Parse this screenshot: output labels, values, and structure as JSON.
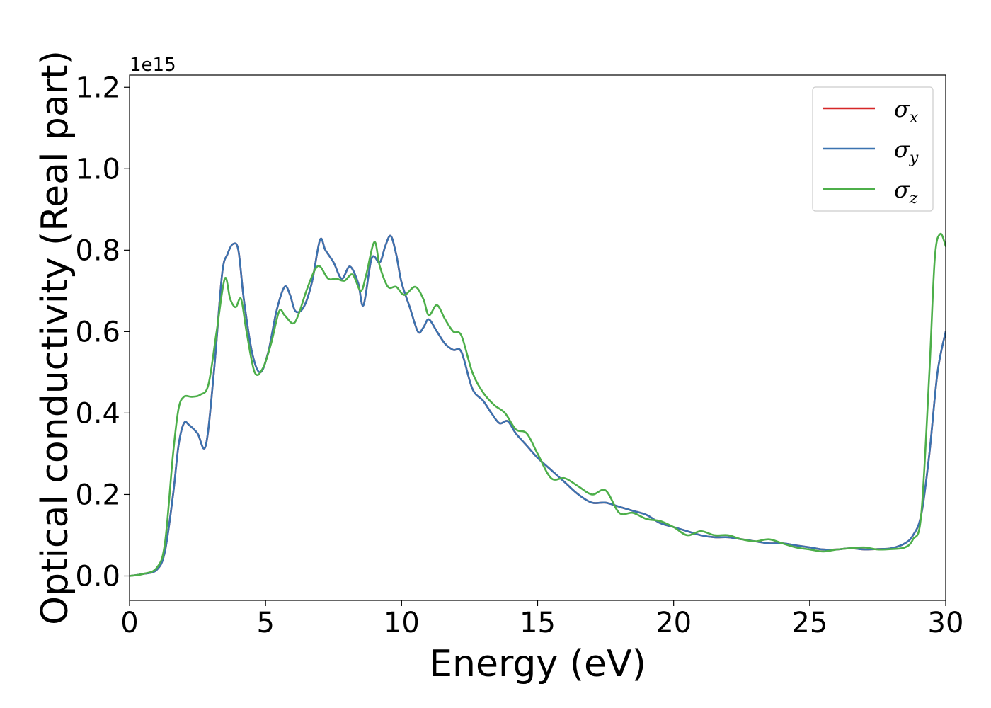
{
  "chart_data": {
    "type": "line",
    "xlabel": "Energy (eV)",
    "ylabel": "Optical conductivity (Real part)",
    "y_offset_label": "1e15",
    "xlim": [
      0,
      30
    ],
    "ylim": [
      -0.06,
      1.23
    ],
    "x_ticks": [
      0,
      5,
      10,
      15,
      20,
      25,
      30
    ],
    "x_tick_labels": [
      "0",
      "5",
      "10",
      "15",
      "20",
      "25",
      "30"
    ],
    "y_ticks": [
      0.0,
      0.2,
      0.4,
      0.6,
      0.8,
      1.0,
      1.2
    ],
    "y_tick_labels": [
      "0.0",
      "0.2",
      "0.4",
      "0.6",
      "0.8",
      "1.0",
      "1.2"
    ],
    "grid": false,
    "legend_position": "top-right",
    "series": [
      {
        "name": "σ",
        "subscript": "x",
        "color": "#d62728",
        "x": [
          0,
          0.5,
          1,
          1.3,
          1.6,
          1.8,
          2,
          2.2,
          2.5,
          2.8,
          3.1,
          3.4,
          3.6,
          3.8,
          4,
          4.2,
          4.5,
          4.8,
          5.1,
          5.4,
          5.7,
          5.9,
          6.1,
          6.4,
          6.7,
          7,
          7.2,
          7.5,
          7.8,
          8.1,
          8.4,
          8.6,
          8.9,
          9.2,
          9.4,
          9.6,
          9.8,
          10,
          10.3,
          10.6,
          10.8,
          11,
          11.3,
          11.6,
          11.9,
          12.2,
          12.6,
          13,
          13.3,
          13.6,
          13.9,
          14.2,
          14.6,
          15,
          15.5,
          16,
          16.5,
          17,
          17.5,
          18,
          18.5,
          19,
          19.5,
          20,
          20.5,
          21,
          21.5,
          22,
          22.5,
          23,
          23.5,
          24,
          24.5,
          25,
          25.5,
          26,
          26.5,
          27,
          27.5,
          28,
          28.5,
          28.8,
          29.1,
          29.4,
          29.7,
          30
        ],
        "y": [
          0,
          0.005,
          0.015,
          0.06,
          0.2,
          0.32,
          0.375,
          0.37,
          0.35,
          0.32,
          0.5,
          0.74,
          0.79,
          0.815,
          0.8,
          0.68,
          0.55,
          0.5,
          0.55,
          0.65,
          0.71,
          0.69,
          0.65,
          0.66,
          0.72,
          0.825,
          0.8,
          0.77,
          0.73,
          0.76,
          0.72,
          0.665,
          0.78,
          0.77,
          0.81,
          0.835,
          0.79,
          0.72,
          0.66,
          0.6,
          0.61,
          0.63,
          0.6,
          0.57,
          0.555,
          0.55,
          0.46,
          0.43,
          0.4,
          0.375,
          0.38,
          0.35,
          0.32,
          0.29,
          0.26,
          0.23,
          0.2,
          0.18,
          0.18,
          0.17,
          0.16,
          0.15,
          0.13,
          0.12,
          0.11,
          0.1,
          0.095,
          0.095,
          0.09,
          0.085,
          0.08,
          0.08,
          0.075,
          0.07,
          0.065,
          0.065,
          0.068,
          0.065,
          0.066,
          0.068,
          0.08,
          0.1,
          0.15,
          0.3,
          0.5,
          0.6
        ]
      },
      {
        "name": "σ",
        "subscript": "y",
        "color": "#3b73b0",
        "x": [
          0,
          0.5,
          1,
          1.3,
          1.6,
          1.8,
          2,
          2.2,
          2.5,
          2.8,
          3.1,
          3.4,
          3.6,
          3.8,
          4,
          4.2,
          4.5,
          4.8,
          5.1,
          5.4,
          5.7,
          5.9,
          6.1,
          6.4,
          6.7,
          7,
          7.2,
          7.5,
          7.8,
          8.1,
          8.4,
          8.6,
          8.9,
          9.2,
          9.4,
          9.6,
          9.8,
          10,
          10.3,
          10.6,
          10.8,
          11,
          11.3,
          11.6,
          11.9,
          12.2,
          12.6,
          13,
          13.3,
          13.6,
          13.9,
          14.2,
          14.6,
          15,
          15.5,
          16,
          16.5,
          17,
          17.5,
          18,
          18.5,
          19,
          19.5,
          20,
          20.5,
          21,
          21.5,
          22,
          22.5,
          23,
          23.5,
          24,
          24.5,
          25,
          25.5,
          26,
          26.5,
          27,
          27.5,
          28,
          28.5,
          28.8,
          29.1,
          29.4,
          29.7,
          30
        ],
        "y": [
          0,
          0.005,
          0.015,
          0.06,
          0.2,
          0.32,
          0.375,
          0.37,
          0.35,
          0.32,
          0.5,
          0.74,
          0.79,
          0.815,
          0.8,
          0.68,
          0.55,
          0.5,
          0.55,
          0.65,
          0.71,
          0.69,
          0.65,
          0.66,
          0.72,
          0.825,
          0.8,
          0.77,
          0.73,
          0.76,
          0.72,
          0.665,
          0.78,
          0.77,
          0.81,
          0.835,
          0.79,
          0.72,
          0.66,
          0.6,
          0.61,
          0.63,
          0.6,
          0.57,
          0.555,
          0.55,
          0.46,
          0.43,
          0.4,
          0.375,
          0.38,
          0.35,
          0.32,
          0.29,
          0.26,
          0.23,
          0.2,
          0.18,
          0.18,
          0.17,
          0.16,
          0.15,
          0.13,
          0.12,
          0.11,
          0.1,
          0.095,
          0.095,
          0.09,
          0.085,
          0.08,
          0.08,
          0.075,
          0.07,
          0.065,
          0.065,
          0.068,
          0.065,
          0.066,
          0.068,
          0.08,
          0.1,
          0.15,
          0.3,
          0.5,
          0.6
        ]
      },
      {
        "name": "σ",
        "subscript": "z",
        "color": "#4daf4a",
        "x": [
          0,
          0.5,
          1,
          1.3,
          1.6,
          1.8,
          2,
          2.3,
          2.6,
          2.9,
          3.2,
          3.5,
          3.7,
          3.9,
          4.1,
          4.3,
          4.6,
          4.9,
          5.2,
          5.5,
          5.7,
          6,
          6.2,
          6.5,
          6.8,
          7,
          7.3,
          7.6,
          7.9,
          8.2,
          8.5,
          8.7,
          9,
          9.2,
          9.5,
          9.8,
          10.1,
          10.5,
          10.8,
          11,
          11.3,
          11.6,
          11.9,
          12.2,
          12.6,
          13,
          13.4,
          13.8,
          14.2,
          14.6,
          15,
          15.5,
          16,
          16.5,
          17,
          17.5,
          18,
          18.5,
          19,
          19.5,
          20,
          20.5,
          21,
          21.5,
          22,
          22.5,
          23,
          23.5,
          24,
          24.5,
          25,
          25.5,
          26,
          26.5,
          27,
          27.5,
          28,
          28.5,
          28.8,
          29.1,
          29.4,
          29.6,
          29.8,
          30
        ],
        "y": [
          0,
          0.005,
          0.02,
          0.08,
          0.3,
          0.41,
          0.44,
          0.44,
          0.445,
          0.47,
          0.6,
          0.73,
          0.68,
          0.66,
          0.68,
          0.6,
          0.5,
          0.51,
          0.57,
          0.65,
          0.64,
          0.62,
          0.64,
          0.7,
          0.75,
          0.76,
          0.73,
          0.73,
          0.725,
          0.74,
          0.7,
          0.74,
          0.82,
          0.76,
          0.71,
          0.71,
          0.69,
          0.71,
          0.68,
          0.64,
          0.665,
          0.63,
          0.6,
          0.59,
          0.5,
          0.45,
          0.42,
          0.4,
          0.36,
          0.35,
          0.3,
          0.24,
          0.24,
          0.22,
          0.2,
          0.21,
          0.155,
          0.155,
          0.14,
          0.135,
          0.12,
          0.1,
          0.11,
          0.1,
          0.1,
          0.09,
          0.085,
          0.09,
          0.08,
          0.07,
          0.065,
          0.06,
          0.065,
          0.068,
          0.07,
          0.065,
          0.066,
          0.07,
          0.09,
          0.15,
          0.5,
          0.78,
          0.84,
          0.81
        ]
      }
    ]
  }
}
